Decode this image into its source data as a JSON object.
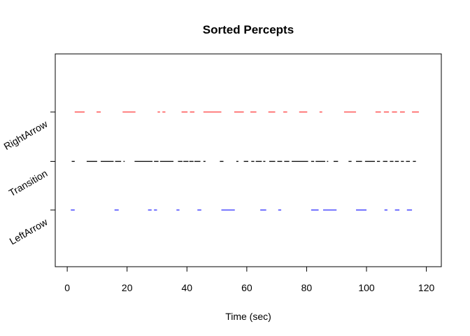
{
  "chart_data": {
    "type": "scatter",
    "title": "Sorted Percepts",
    "xlabel": "Time (sec)",
    "ylabel": "",
    "xlim": [
      -4,
      125
    ],
    "x_ticks": [
      0,
      20,
      40,
      60,
      80,
      100,
      120
    ],
    "categories": [
      "LeftArrow",
      "Transition",
      "RightArrow"
    ],
    "grid": false,
    "legend": "none",
    "series": [
      {
        "name": "RightArrow",
        "color": "#ff3b3b",
        "segments": [
          [
            2.5,
            5.8
          ],
          [
            9.8,
            11.2
          ],
          [
            18.5,
            22.8
          ],
          [
            30.2,
            31.0
          ],
          [
            31.8,
            32.8
          ],
          [
            38.2,
            40.2
          ],
          [
            41.0,
            42.5
          ],
          [
            45.5,
            51.5
          ],
          [
            55.8,
            59.0
          ],
          [
            61.2,
            63.2
          ],
          [
            67.2,
            69.5
          ],
          [
            72.2,
            73.5
          ],
          [
            77.5,
            80.2
          ],
          [
            84.3,
            85.2
          ],
          [
            92.5,
            96.5
          ],
          [
            103.0,
            104.8
          ],
          [
            105.8,
            107.5
          ],
          [
            108.5,
            110.2
          ],
          [
            111.2,
            112.8
          ],
          [
            115.2,
            117.5
          ]
        ]
      },
      {
        "name": "Transition",
        "color": "#000000",
        "segments": [
          [
            1.5,
            2.5
          ],
          [
            6.5,
            10.0
          ],
          [
            11.2,
            15.5
          ],
          [
            16.0,
            18.0
          ],
          [
            18.8,
            19.2
          ],
          [
            22.5,
            28.5
          ],
          [
            29.0,
            30.5
          ],
          [
            31.0,
            35.5
          ],
          [
            37.0,
            38.5
          ],
          [
            38.8,
            40.5
          ],
          [
            40.8,
            42.2
          ],
          [
            42.5,
            44.5
          ],
          [
            45.5,
            46.2
          ],
          [
            51.0,
            52.2
          ],
          [
            56.5,
            57.2
          ],
          [
            59.0,
            60.5
          ],
          [
            61.5,
            62.5
          ],
          [
            63.0,
            65.0
          ],
          [
            65.5,
            66.2
          ],
          [
            67.5,
            69.5
          ],
          [
            70.2,
            71.8
          ],
          [
            72.5,
            74.2
          ],
          [
            75.0,
            80.5
          ],
          [
            81.5,
            82.5
          ],
          [
            83.0,
            86.2
          ],
          [
            86.8,
            87.2
          ],
          [
            89.0,
            90.5
          ],
          [
            94.0,
            95.0
          ],
          [
            96.5,
            98.5
          ],
          [
            99.5,
            102.8
          ],
          [
            103.5,
            104.5
          ],
          [
            105.5,
            107.0
          ],
          [
            107.8,
            109.0
          ],
          [
            109.5,
            110.8
          ],
          [
            111.5,
            112.5
          ],
          [
            113.2,
            114.5
          ],
          [
            115.5,
            116.5
          ]
        ]
      },
      {
        "name": "LeftArrow",
        "color": "#2b2bff",
        "segments": [
          [
            1.2,
            2.5
          ],
          [
            15.8,
            17.2
          ],
          [
            27.0,
            28.2
          ],
          [
            29.0,
            30.0
          ],
          [
            36.5,
            37.5
          ],
          [
            43.5,
            44.8
          ],
          [
            51.5,
            56.0
          ],
          [
            64.5,
            66.5
          ],
          [
            70.5,
            71.5
          ],
          [
            81.5,
            84.0
          ],
          [
            85.5,
            90.0
          ],
          [
            96.5,
            100.0
          ],
          [
            106.0,
            107.0
          ],
          [
            109.5,
            111.0
          ],
          [
            113.5,
            115.2
          ]
        ]
      }
    ]
  }
}
